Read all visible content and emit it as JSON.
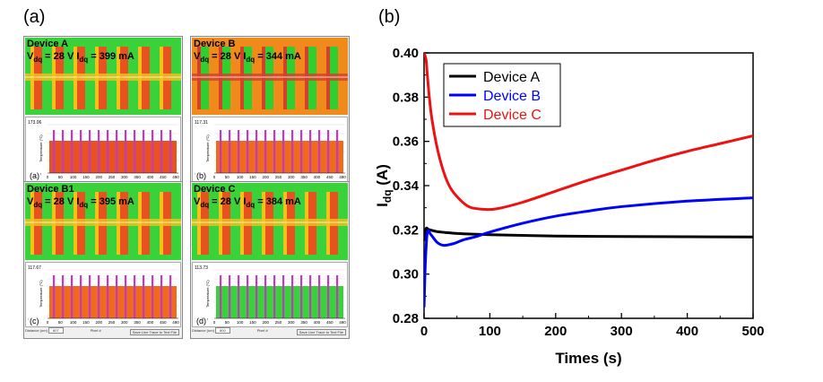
{
  "labels": {
    "panel_a": "(a)",
    "panel_b": "(b)"
  },
  "thermal_panels": [
    {
      "sub": "(a)",
      "device": "Device A",
      "vdq": "28 V",
      "idq": "399 mA",
      "ytop": "173.06",
      "ybot": "100.00",
      "dist": "750",
      "bg": "#3ad23a"
    },
    {
      "sub": "(b)",
      "device": "Device B",
      "vdq": "28 V",
      "idq": "344 mA",
      "ytop": "117.31",
      "ybot": "97",
      "dist": "804",
      "bg": "#ef8a1b"
    },
    {
      "sub": "(c)",
      "device": "Device B1",
      "vdq": "28 V",
      "idq": "395 mA",
      "ytop": "117.67",
      "ybot": "97",
      "dist": "807",
      "bg": "#3ad23a"
    },
    {
      "sub": "(d)",
      "device": "Device C",
      "vdq": "28 V",
      "idq": "384 mA",
      "ytop": "113.73",
      "ybot": "100.00",
      "dist": "800",
      "bg": "#3ad23a"
    }
  ],
  "thermal_axis": {
    "xlabel": "Pixel #",
    "ylabel": "Temperature (°C)",
    "dist_label": "Distance (um)",
    "save_label": "Save Line Trace to Text File",
    "ticks": [
      "0",
      "50",
      "100",
      "150",
      "200",
      "250",
      "300",
      "350",
      "400",
      "450",
      "490"
    ]
  },
  "chart_data": {
    "type": "line",
    "xlabel": "Times (s)",
    "ylabel_main": "I",
    "ylabel_sub": "dq",
    "ylabel_unit": " (A)",
    "xlim": [
      0,
      500
    ],
    "ylim": [
      0.28,
      0.4
    ],
    "xticks": [
      0,
      100,
      200,
      300,
      400,
      500
    ],
    "yticks": [
      0.28,
      0.3,
      0.32,
      0.34,
      0.36,
      0.38,
      0.4
    ],
    "legend_position": "top-left",
    "series": [
      {
        "name": "Device A",
        "color": "#000000",
        "x": [
          0,
          3,
          6,
          10,
          20,
          40,
          60,
          100,
          150,
          200,
          300,
          400,
          500
        ],
        "y": [
          0.315,
          0.3205,
          0.3203,
          0.3199,
          0.3192,
          0.3186,
          0.3182,
          0.3178,
          0.3175,
          0.3172,
          0.317,
          0.3169,
          0.3168
        ]
      },
      {
        "name": "Device B",
        "color": "#0000ff",
        "x": [
          0,
          2,
          5,
          10,
          20,
          30,
          45,
          60,
          80,
          100,
          150,
          200,
          250,
          300,
          400,
          500
        ],
        "y": [
          0.285,
          0.305,
          0.319,
          0.318,
          0.3143,
          0.313,
          0.3138,
          0.3155,
          0.317,
          0.319,
          0.323,
          0.3262,
          0.3285,
          0.3305,
          0.333,
          0.3345
        ]
      },
      {
        "name": "Device C",
        "color": "#ee1111",
        "x": [
          0,
          3,
          5,
          8,
          12,
          20,
          30,
          40,
          55,
          70,
          90,
          110,
          150,
          200,
          250,
          300,
          350,
          400,
          450,
          500
        ],
        "y": [
          0.4,
          0.397,
          0.39,
          0.38,
          0.37,
          0.357,
          0.346,
          0.339,
          0.3335,
          0.3302,
          0.3293,
          0.3295,
          0.3325,
          0.3375,
          0.3425,
          0.347,
          0.3515,
          0.3555,
          0.359,
          0.3625
        ]
      }
    ]
  }
}
